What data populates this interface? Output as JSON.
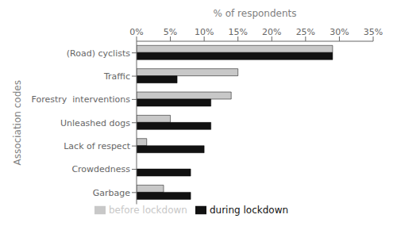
{
  "chart_data": {
    "type": "bar",
    "orientation": "horizontal",
    "xlabel": "% of respondents",
    "ylabel": "Association codes",
    "categories": [
      "(Road) cyclists",
      "Traffic",
      "Forestry  interventions",
      "Unleashed dogs",
      "Lack of respect",
      "Crowdedness",
      "Garbage"
    ],
    "series": [
      {
        "name": "before lockdown",
        "color": "#c8c8c8",
        "values": [
          29,
          15,
          14,
          5,
          1.5,
          0,
          4
        ]
      },
      {
        "name": "during lockdown",
        "color": "#111111",
        "values": [
          29,
          6,
          11,
          11,
          10,
          8,
          8
        ]
      }
    ],
    "xlim": [
      0,
      35
    ],
    "xticks": [
      {
        "value": 0,
        "label": "0%"
      },
      {
        "value": 5,
        "label": "5%"
      },
      {
        "value": 10,
        "label": "10%"
      },
      {
        "value": 15,
        "label": "15%"
      },
      {
        "value": 20,
        "label": "20%"
      },
      {
        "value": 25,
        "label": "25%"
      },
      {
        "value": 30,
        "label": "30%"
      },
      {
        "value": 35,
        "label": "35%"
      }
    ],
    "grid": false,
    "legend": "bottom"
  }
}
